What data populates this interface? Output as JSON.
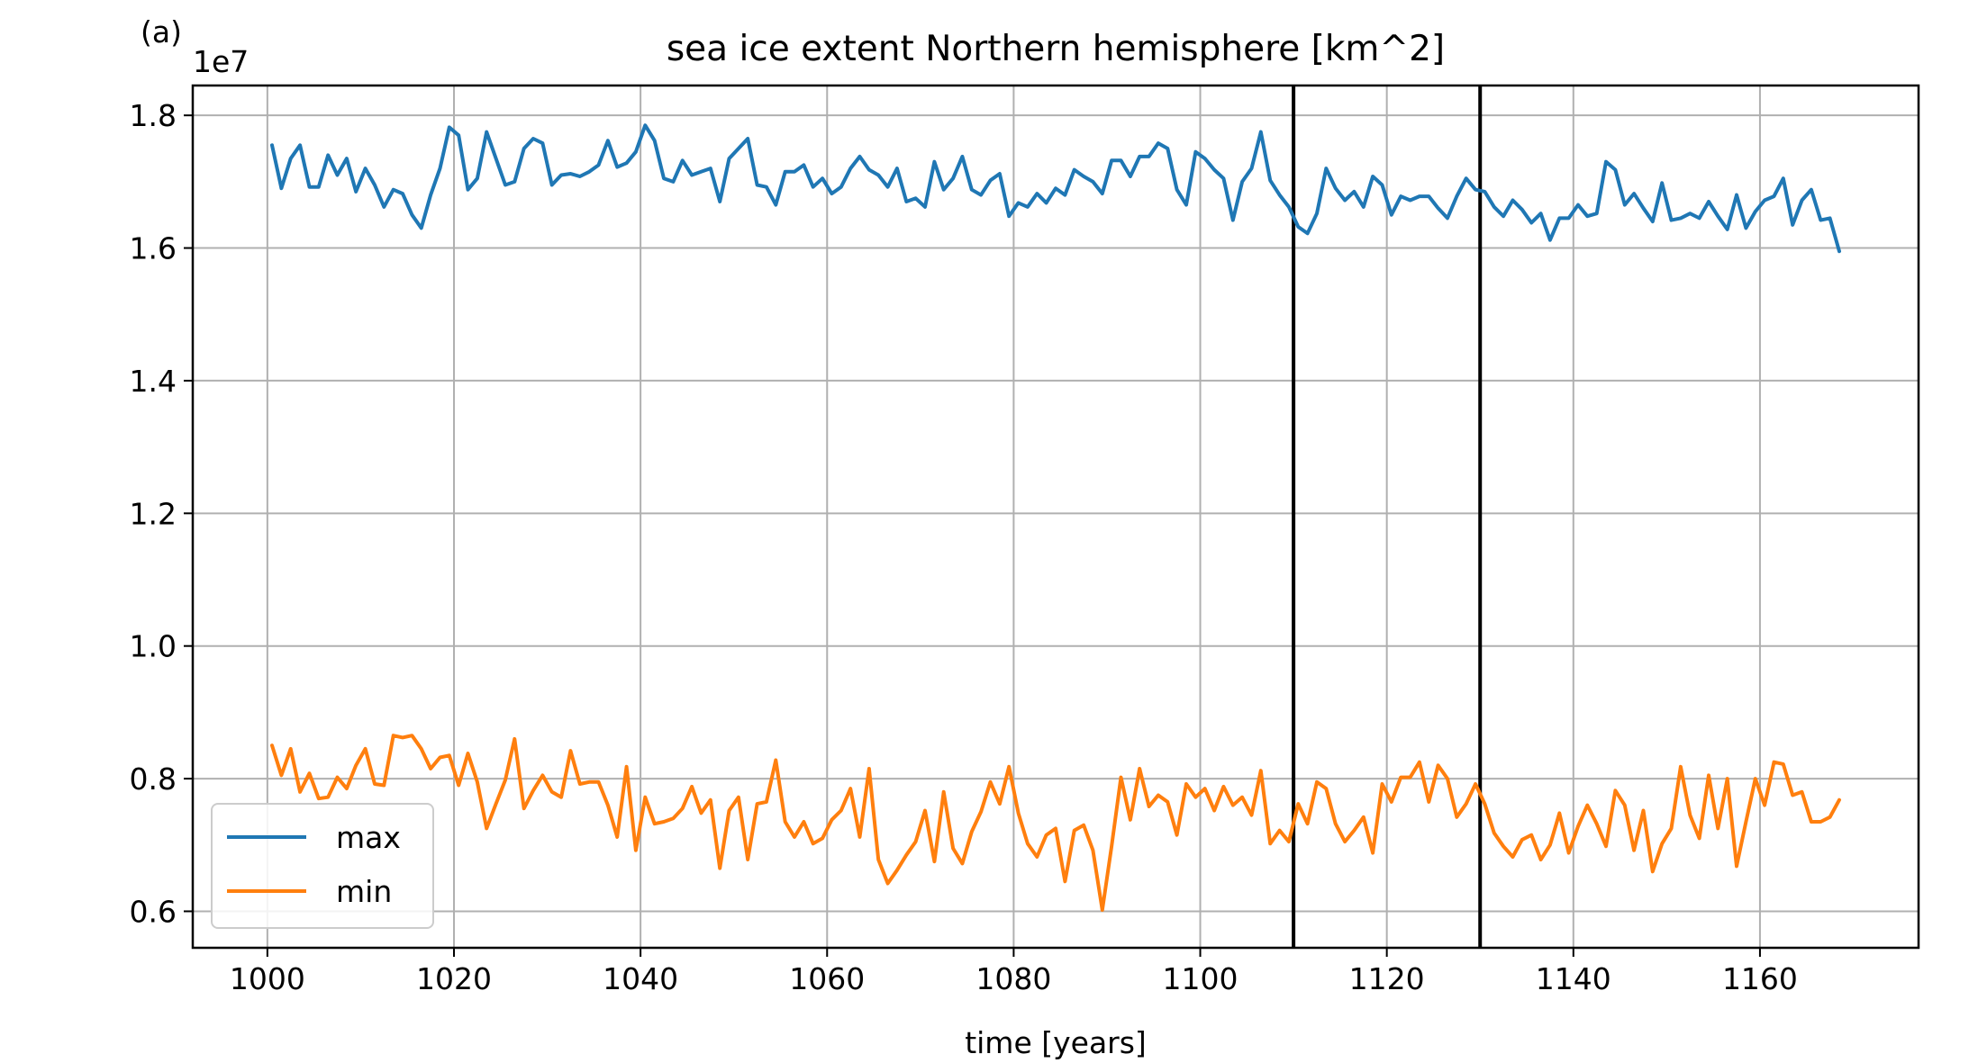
{
  "panel_label": "(a)",
  "chart_data": {
    "type": "line",
    "title": "sea ice extent Northern hemisphere [km^2]",
    "xlabel": "time [years]",
    "ylabel": "",
    "y_scale_label": "1e7",
    "y_scale": 10000000,
    "xlim": [
      992,
      1177
    ],
    "ylim": [
      5.45,
      18.45
    ],
    "x_ticks": [
      1000,
      1020,
      1040,
      1060,
      1080,
      1100,
      1120,
      1140,
      1160
    ],
    "x_tick_labels": [
      "1000",
      "1020",
      "1040",
      "1060",
      "1080",
      "1100",
      "1120",
      "1140",
      "1160"
    ],
    "y_ticks": [
      6,
      8,
      10,
      12,
      14,
      16,
      18
    ],
    "y_tick_labels": [
      "0.6",
      "0.8",
      "1.0",
      "1.2",
      "1.4",
      "1.6",
      "1.8"
    ],
    "grid": true,
    "legend_position": "lower-left",
    "vlines": [
      1110,
      1130
    ],
    "x_start": 1000.5,
    "x_step": 1,
    "series": [
      {
        "name": "max",
        "color": "#1f77b4",
        "values": [
          17.55,
          16.9,
          17.35,
          17.55,
          16.92,
          16.92,
          17.4,
          17.1,
          17.35,
          16.85,
          17.2,
          16.95,
          16.62,
          16.88,
          16.82,
          16.5,
          16.3,
          16.8,
          17.2,
          17.82,
          17.7,
          16.88,
          17.05,
          17.75,
          17.35,
          16.95,
          17.0,
          17.5,
          17.65,
          17.58,
          16.95,
          17.1,
          17.12,
          17.08,
          17.15,
          17.25,
          17.62,
          17.22,
          17.28,
          17.45,
          17.85,
          17.62,
          17.05,
          17.0,
          17.32,
          17.1,
          17.15,
          17.2,
          16.7,
          17.35,
          17.5,
          17.65,
          16.95,
          16.92,
          16.65,
          17.15,
          17.15,
          17.25,
          16.92,
          17.05,
          16.82,
          16.92,
          17.2,
          17.38,
          17.18,
          17.1,
          16.92,
          17.2,
          16.7,
          16.75,
          16.62,
          17.3,
          16.88,
          17.05,
          17.38,
          16.88,
          16.8,
          17.02,
          17.12,
          16.48,
          16.68,
          16.62,
          16.82,
          16.68,
          16.9,
          16.8,
          17.18,
          17.08,
          17.0,
          16.82,
          17.32,
          17.32,
          17.08,
          17.38,
          17.38,
          17.58,
          17.5,
          16.88,
          16.65,
          17.45,
          17.35,
          17.18,
          17.05,
          16.42,
          17.0,
          17.2,
          17.75,
          17.02,
          16.8,
          16.62,
          16.32,
          16.22,
          16.52,
          17.2,
          16.9,
          16.72,
          16.85,
          16.62,
          17.08,
          16.95,
          16.5,
          16.78,
          16.72,
          16.78,
          16.78,
          16.6,
          16.45,
          16.78,
          17.05,
          16.88,
          16.85,
          16.62,
          16.48,
          16.72,
          16.58,
          16.38,
          16.52,
          16.12,
          16.45,
          16.45,
          16.65,
          16.48,
          16.52,
          17.3,
          17.18,
          16.65,
          16.82,
          16.6,
          16.4,
          16.98,
          16.42,
          16.45,
          16.52,
          16.45,
          16.7,
          16.48,
          16.28,
          16.8,
          16.3,
          16.55,
          16.72,
          16.78,
          17.05,
          16.35,
          16.72,
          16.88,
          16.42,
          16.45,
          15.95
        ],
        "stroke_width": 4
      },
      {
        "name": "min",
        "color": "#ff7f0e",
        "values": [
          8.5,
          8.05,
          8.45,
          7.8,
          8.08,
          7.7,
          7.72,
          8.02,
          7.85,
          8.2,
          8.45,
          7.92,
          7.9,
          8.65,
          8.62,
          8.65,
          8.45,
          8.15,
          8.32,
          8.35,
          7.9,
          8.38,
          7.95,
          7.25,
          7.62,
          7.98,
          8.6,
          7.55,
          7.82,
          8.05,
          7.8,
          7.72,
          8.42,
          7.92,
          7.95,
          7.95,
          7.6,
          7.12,
          8.18,
          6.92,
          7.72,
          7.32,
          7.35,
          7.4,
          7.55,
          7.88,
          7.48,
          7.68,
          6.65,
          7.52,
          7.72,
          6.78,
          7.62,
          7.65,
          8.28,
          7.35,
          7.12,
          7.35,
          7.02,
          7.1,
          7.38,
          7.52,
          7.85,
          7.12,
          8.15,
          6.78,
          6.42,
          6.62,
          6.85,
          7.05,
          7.52,
          6.75,
          7.8,
          6.95,
          6.72,
          7.2,
          7.5,
          7.95,
          7.62,
          8.18,
          7.48,
          7.02,
          6.82,
          7.15,
          7.25,
          6.45,
          7.22,
          7.3,
          6.92,
          6.02,
          6.98,
          8.02,
          7.38,
          8.15,
          7.58,
          7.75,
          7.65,
          7.15,
          7.92,
          7.72,
          7.85,
          7.52,
          7.88,
          7.6,
          7.72,
          7.45,
          8.12,
          7.02,
          7.22,
          7.05,
          7.62,
          7.32,
          7.95,
          7.85,
          7.32,
          7.05,
          7.22,
          7.42,
          6.88,
          7.92,
          7.65,
          8.02,
          8.02,
          8.25,
          7.65,
          8.2,
          8.0,
          7.42,
          7.62,
          7.92,
          7.62,
          7.18,
          6.98,
          6.82,
          7.08,
          7.15,
          6.78,
          7.0,
          7.48,
          6.88,
          7.28,
          7.6,
          7.32,
          6.98,
          7.82,
          7.6,
          6.92,
          7.52,
          6.6,
          7.02,
          7.25,
          8.18,
          7.45,
          7.1,
          8.05,
          7.25,
          8.0,
          6.68,
          7.35,
          8.0,
          7.6,
          8.25,
          8.22,
          7.75,
          7.8,
          7.35,
          7.35,
          7.42,
          7.68
        ],
        "stroke_width": 4
      }
    ]
  }
}
